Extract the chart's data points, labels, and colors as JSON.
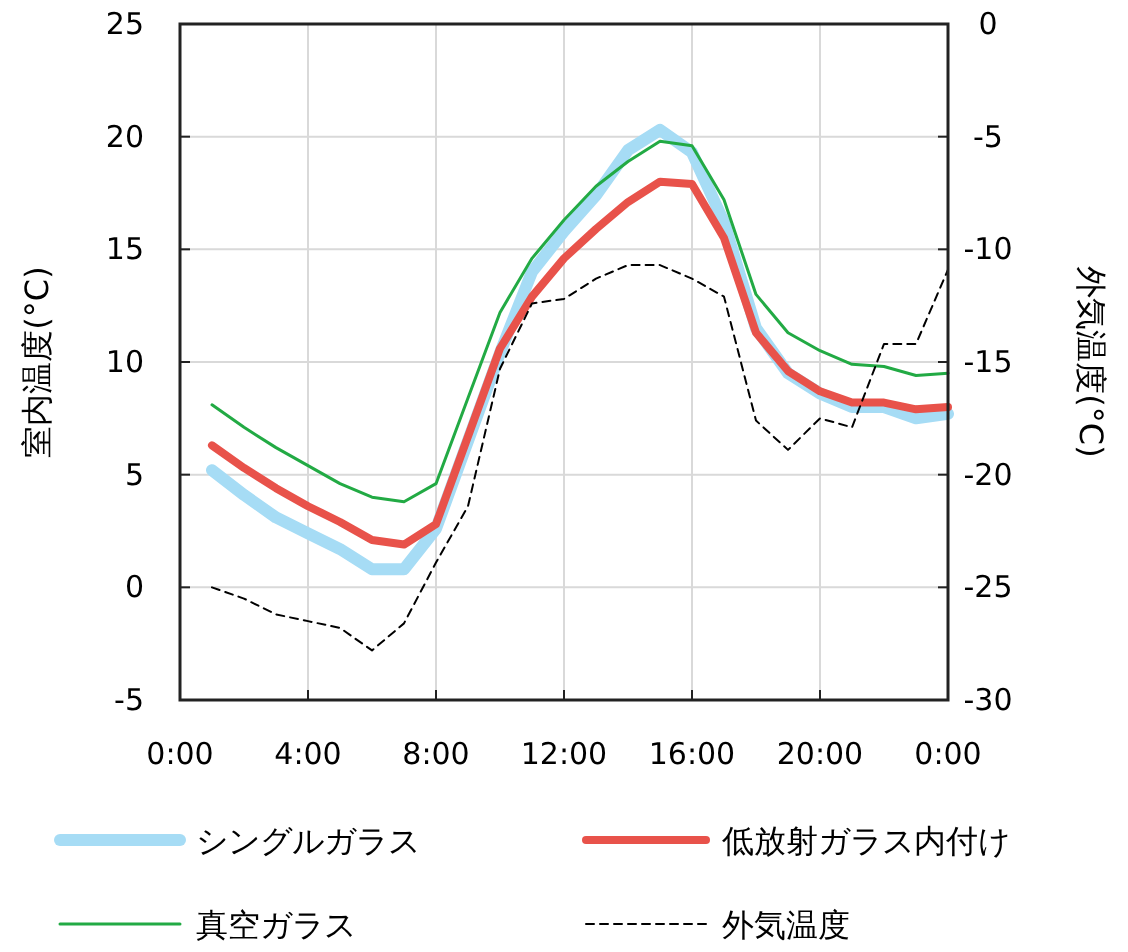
{
  "chart_data": {
    "type": "line",
    "ylabel": "室内温度(°C)",
    "y2label": "外気温度(°C)",
    "x": [
      1,
      2,
      3,
      4,
      5,
      6,
      7,
      8,
      9,
      10,
      11,
      12,
      13,
      14,
      15,
      16,
      17,
      18,
      19,
      20,
      21,
      22,
      23,
      24
    ],
    "xlim": [
      0,
      24
    ],
    "xticks": [
      {
        "value": 0,
        "label": "0:00"
      },
      {
        "value": 4,
        "label": "4:00"
      },
      {
        "value": 8,
        "label": "8:00"
      },
      {
        "value": 12,
        "label": "12:00"
      },
      {
        "value": 16,
        "label": "16:00"
      },
      {
        "value": 20,
        "label": "20:00"
      },
      {
        "value": 24,
        "label": "0:00"
      }
    ],
    "ylim": [
      -5,
      25
    ],
    "yticks": [
      -5,
      0,
      5,
      10,
      15,
      20,
      25
    ],
    "y2lim": [
      -30,
      0
    ],
    "y2ticks": [
      -30,
      -25,
      -20,
      -15,
      -10,
      -5,
      0
    ],
    "grid": true,
    "legend": "bottom",
    "marker": "none",
    "series": [
      {
        "name": "シングルガラス",
        "color": "#a6dcf5",
        "values": [
          5.2,
          4.1,
          3.1,
          2.4,
          1.7,
          0.8,
          0.8,
          2.6,
          6.5,
          10.4,
          14.0,
          15.8,
          17.4,
          19.4,
          20.3,
          19.3,
          16.2,
          11.5,
          9.5,
          8.6,
          8.0,
          8.0,
          7.5,
          7.7
        ]
      },
      {
        "name": "低放射ガラス内付け",
        "color": "#e8524a",
        "values": [
          6.3,
          5.3,
          4.4,
          3.6,
          2.9,
          2.1,
          1.9,
          2.8,
          6.7,
          10.6,
          12.9,
          14.6,
          15.9,
          17.1,
          18.0,
          17.9,
          15.5,
          11.3,
          9.6,
          8.7,
          8.2,
          8.2,
          7.9,
          8.0
        ]
      },
      {
        "name": "真空ガラス",
        "color": "#22aa44",
        "values": [
          8.1,
          7.1,
          6.2,
          5.4,
          4.6,
          4.0,
          3.8,
          4.6,
          8.4,
          12.2,
          14.6,
          16.3,
          17.8,
          18.9,
          19.8,
          19.6,
          17.2,
          13.0,
          11.3,
          10.5,
          9.9,
          9.8,
          9.4,
          9.5
        ]
      },
      {
        "name": "外気温度",
        "color": "#000000",
        "axis": "y2",
        "line_style": "dashed",
        "values": [
          -25,
          -25.5,
          -26.2,
          -26.5,
          -26.8,
          -27.8,
          -26.6,
          -23.9,
          -21.4,
          -15.3,
          -12.4,
          -12.2,
          -11.3,
          -10.7,
          -10.7,
          -11.3,
          -12.1,
          -17.6,
          -18.9,
          -17.5,
          -17.9,
          -14.2,
          -14.2,
          -10.9
        ]
      }
    ]
  }
}
